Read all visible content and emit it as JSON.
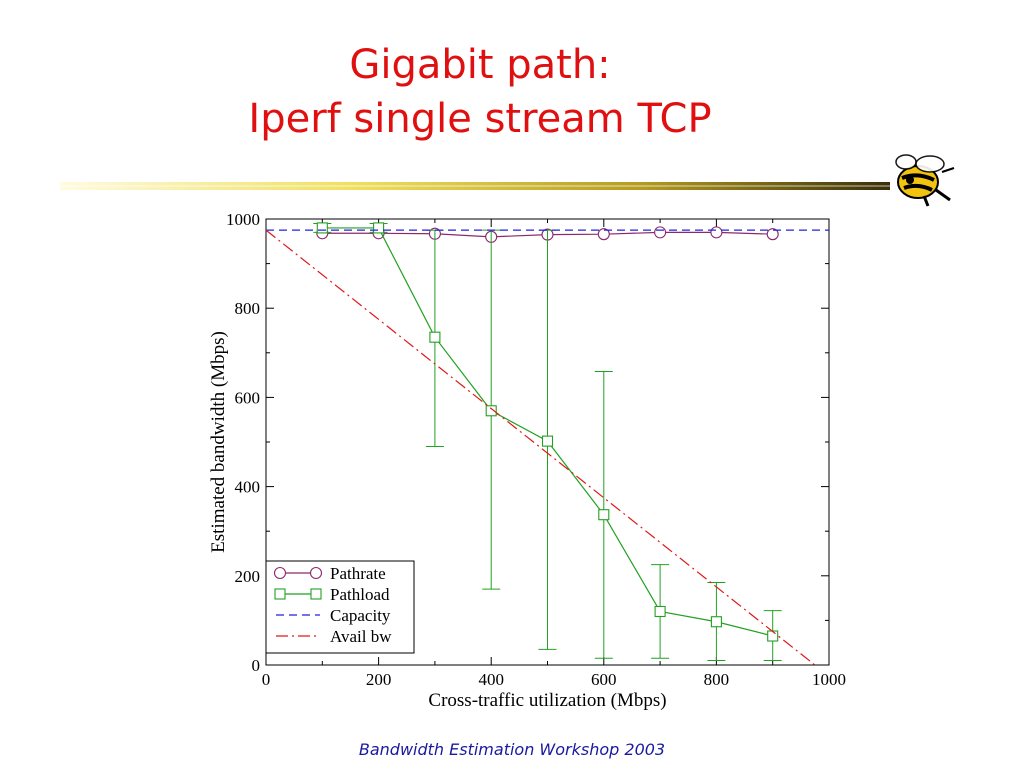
{
  "slide": {
    "title_line1": "Gigabit path:",
    "title_line2": "Iperf single stream TCP",
    "footer": "Bandwidth Estimation Workshop 2003",
    "title_color": "#e01010",
    "footer_color": "#1a1aa0",
    "mascot_icon": "yellow-jacket-mascot-icon"
  },
  "chart_data": {
    "type": "line",
    "xlabel": "Cross-traffic utilization (Mbps)",
    "ylabel": "Estimated bandwidth (Mbps)",
    "xlim": [
      0,
      1000
    ],
    "ylim": [
      0,
      1000
    ],
    "x_ticks": [
      0,
      200,
      400,
      600,
      800,
      1000
    ],
    "y_ticks": [
      0,
      200,
      400,
      600,
      800,
      1000
    ],
    "grid": false,
    "legend_position": "bottom-left",
    "series": [
      {
        "name": "Pathrate",
        "marker": "circle",
        "color": "#8b2a6b",
        "x": [
          100,
          200,
          300,
          400,
          500,
          600,
          700,
          800,
          900
        ],
        "y": [
          968,
          968,
          967,
          960,
          965,
          966,
          970,
          970,
          966
        ]
      },
      {
        "name": "Pathload",
        "marker": "square",
        "color": "#22a022",
        "x": [
          100,
          200,
          300,
          400,
          500,
          600,
          700,
          800,
          900
        ],
        "y": [
          980,
          980,
          735,
          570,
          502,
          337,
          120,
          97,
          65
        ],
        "err_low": [
          970,
          970,
          490,
          170,
          35,
          15,
          15,
          10,
          10
        ],
        "err_high": [
          990,
          990,
          975,
          975,
          975,
          658,
          225,
          185,
          122
        ]
      },
      {
        "name": "Capacity",
        "style": "dashed",
        "color": "#2222dd",
        "x": [
          0,
          1000
        ],
        "y": [
          975,
          975
        ]
      },
      {
        "name": "Avail bw",
        "style": "dash-dot",
        "color": "#e01818",
        "x": [
          0,
          975
        ],
        "y": [
          975,
          0
        ]
      }
    ]
  }
}
